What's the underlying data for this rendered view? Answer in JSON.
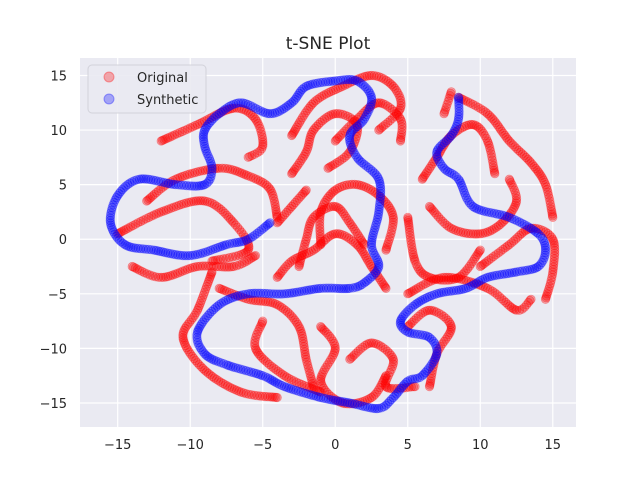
{
  "chart_data": {
    "type": "scatter",
    "title": "t-SNE Plot",
    "xlabel": "",
    "ylabel": "",
    "xlim": [
      -17.6,
      16.6
    ],
    "ylim": [
      -17.2,
      16.6
    ],
    "xticks": [
      -15,
      -10,
      -5,
      0,
      5,
      10,
      15
    ],
    "yticks": [
      -15,
      -10,
      -5,
      0,
      5,
      10,
      15
    ],
    "grid": true,
    "legend_position": "top-left",
    "background": "#eaeaf2",
    "grid_color": "#ffffff",
    "series": [
      {
        "name": "Original",
        "color": "#ff0000",
        "alpha": 0.3,
        "curves": [
          [
            [
              -12,
              9
            ],
            [
              -9.5,
              10.5
            ],
            [
              -7,
              12
            ],
            [
              -5.5,
              11
            ],
            [
              -5,
              8.5
            ],
            [
              -6,
              7.5
            ]
          ],
          [
            [
              -13,
              3.5
            ],
            [
              -11,
              5.5
            ],
            [
              -8,
              6.5
            ],
            [
              -6,
              5.8
            ],
            [
              -4.5,
              4.6
            ],
            [
              -4,
              2
            ]
          ],
          [
            [
              -15,
              0.5
            ],
            [
              -12,
              2.5
            ],
            [
              -9,
              3.5
            ],
            [
              -7,
              1.5
            ],
            [
              -6,
              -1
            ],
            [
              -8.5,
              -2
            ]
          ],
          [
            [
              -14,
              -2.5
            ],
            [
              -12,
              -3.5
            ],
            [
              -9.5,
              -2.5
            ],
            [
              -7,
              -2.5
            ],
            [
              -5.5,
              -1.5
            ]
          ],
          [
            [
              -8.5,
              -3
            ],
            [
              -9.5,
              -6.5
            ],
            [
              -10.5,
              -9
            ],
            [
              -9,
              -12
            ],
            [
              -6.5,
              -14
            ],
            [
              -4,
              -14.5
            ]
          ],
          [
            [
              -8,
              -4.5
            ],
            [
              -6,
              -5.5
            ],
            [
              -4,
              -6
            ],
            [
              -2.5,
              -8
            ],
            [
              -2,
              -11
            ],
            [
              -1.5,
              -13.5
            ]
          ],
          [
            [
              -5,
              -7.5
            ],
            [
              -5.5,
              -10
            ],
            [
              -3.5,
              -12.5
            ],
            [
              -1,
              -14
            ]
          ],
          [
            [
              -1,
              -8
            ],
            [
              0,
              -10
            ],
            [
              -1,
              -13
            ],
            [
              0.5,
              -15
            ],
            [
              2.5,
              -14.5
            ],
            [
              3.5,
              -12.5
            ]
          ],
          [
            [
              1,
              -11
            ],
            [
              2.5,
              -9.5
            ],
            [
              4,
              -11
            ],
            [
              3.5,
              -13.5
            ],
            [
              5.5,
              -13.5
            ]
          ],
          [
            [
              5,
              -8
            ],
            [
              6.5,
              -6.5
            ],
            [
              8,
              -8
            ],
            [
              7,
              -10.5
            ],
            [
              6.5,
              -13.5
            ]
          ],
          [
            [
              5,
              -5
            ],
            [
              7.5,
              -3.5
            ],
            [
              10.5,
              -4.5
            ],
            [
              12.5,
              -6.5
            ],
            [
              13.5,
              -5.5
            ]
          ],
          [
            [
              -4,
              -3.5
            ],
            [
              -3,
              -2
            ],
            [
              -1.5,
              -1
            ],
            [
              0,
              0.5
            ],
            [
              1.5,
              -0.5
            ],
            [
              2.5,
              -2.5
            ],
            [
              3.5,
              -4.5
            ]
          ],
          [
            [
              -2.5,
              -2.5
            ],
            [
              -2,
              0
            ],
            [
              -1.5,
              2
            ],
            [
              0,
              3
            ],
            [
              1,
              1.5
            ],
            [
              2,
              -0.5
            ]
          ],
          [
            [
              -1,
              -0.5
            ],
            [
              -1,
              2.5
            ],
            [
              0,
              4.5
            ],
            [
              1.5,
              5
            ],
            [
              3,
              4
            ],
            [
              4,
              2
            ],
            [
              3.5,
              -1
            ]
          ],
          [
            [
              -3,
              6
            ],
            [
              -2,
              8
            ],
            [
              -1.5,
              10
            ],
            [
              0,
              11.5
            ],
            [
              1.5,
              10.5
            ],
            [
              1,
              8
            ],
            [
              -0.5,
              6.5
            ]
          ],
          [
            [
              -3,
              9.5
            ],
            [
              -1.5,
              12.5
            ],
            [
              0.5,
              14
            ],
            [
              2.5,
              15
            ],
            [
              4,
              14
            ],
            [
              4.5,
              12
            ],
            [
              3,
              10
            ]
          ],
          [
            [
              0,
              9
            ],
            [
              1.5,
              11
            ],
            [
              3,
              12.5
            ],
            [
              4.5,
              11
            ],
            [
              4.5,
              9
            ]
          ],
          [
            [
              -2,
              4.5
            ],
            [
              -3,
              3
            ],
            [
              -4,
              1.5
            ]
          ],
          [
            [
              5,
              2
            ],
            [
              5.5,
              -2
            ],
            [
              6.5,
              -3.5
            ],
            [
              8.5,
              -3.5
            ],
            [
              10,
              -1
            ]
          ],
          [
            [
              6,
              5.5
            ],
            [
              7,
              7.5
            ],
            [
              8,
              9.5
            ],
            [
              9.5,
              10.5
            ],
            [
              10.5,
              9
            ],
            [
              11,
              6
            ]
          ],
          [
            [
              6.5,
              3
            ],
            [
              8,
              1
            ],
            [
              10,
              0.5
            ],
            [
              11.5,
              1.5
            ],
            [
              12.5,
              3.5
            ],
            [
              12,
              5.5
            ]
          ],
          [
            [
              8.5,
              13
            ],
            [
              10.5,
              11.5
            ],
            [
              12,
              9
            ],
            [
              13.5,
              7
            ],
            [
              14.5,
              5
            ],
            [
              15,
              2
            ]
          ],
          [
            [
              8,
              13.5
            ],
            [
              7.5,
              11.5
            ]
          ],
          [
            [
              10,
              -2.5
            ],
            [
              12,
              -0.5
            ],
            [
              13.5,
              1
            ],
            [
              15,
              0
            ],
            [
              15,
              -3
            ],
            [
              14.5,
              -5.5
            ]
          ]
        ]
      },
      {
        "name": "Synthetic",
        "color": "#0000ff",
        "alpha": 0.3,
        "curves": [
          [
            [
              -4.5,
              1.5
            ],
            [
              -6,
              0
            ],
            [
              -7.5,
              -0.5
            ],
            [
              -10,
              -1.5
            ],
            [
              -12.5,
              -1
            ],
            [
              -14.5,
              -0.5
            ],
            [
              -15.5,
              1.5
            ],
            [
              -15,
              4
            ],
            [
              -13.5,
              5.5
            ],
            [
              -11,
              5
            ],
            [
              -9,
              5
            ],
            [
              -8.5,
              6.5
            ],
            [
              -9,
              8.5
            ],
            [
              -9,
              10
            ],
            [
              -8,
              11.5
            ],
            [
              -6.5,
              12.5
            ],
            [
              -4.5,
              11.5
            ],
            [
              -3,
              12.5
            ],
            [
              -2,
              14
            ],
            [
              0,
              14.5
            ],
            [
              1.5,
              14.5
            ],
            [
              2.5,
              13
            ],
            [
              2,
              11
            ],
            [
              1,
              9.5
            ],
            [
              1.5,
              7.5
            ],
            [
              3,
              5.5
            ],
            [
              3,
              2.5
            ],
            [
              2.5,
              -0.5
            ],
            [
              3,
              -2.5
            ],
            [
              2,
              -4
            ],
            [
              1,
              -4.5
            ],
            [
              -1,
              -4.5
            ],
            [
              -3.5,
              -5
            ],
            [
              -6,
              -5
            ],
            [
              -8,
              -6
            ],
            [
              -9.5,
              -8.5
            ],
            [
              -9,
              -10.5
            ],
            [
              -7.5,
              -11.5
            ],
            [
              -5,
              -12.5
            ],
            [
              -3.5,
              -13.5
            ],
            [
              -1,
              -14.5
            ],
            [
              1,
              -15
            ],
            [
              3,
              -15.5
            ],
            [
              4,
              -14.5
            ],
            [
              5,
              -13
            ],
            [
              6,
              -12.5
            ],
            [
              7,
              -10.5
            ],
            [
              6.5,
              -9
            ],
            [
              5,
              -8.5
            ],
            [
              4.5,
              -7.5
            ],
            [
              5.5,
              -6
            ],
            [
              7,
              -5
            ],
            [
              9,
              -4.5
            ],
            [
              10.5,
              -3.5
            ],
            [
              12.5,
              -3
            ],
            [
              14,
              -2.5
            ],
            [
              14.5,
              -1
            ],
            [
              14,
              0.5
            ],
            [
              12,
              2
            ],
            [
              9.5,
              3
            ],
            [
              8.5,
              5.5
            ],
            [
              7.5,
              6.5
            ],
            [
              7,
              8
            ],
            [
              8,
              9.5
            ],
            [
              8.5,
              11
            ],
            [
              8.5,
              13
            ]
          ]
        ]
      }
    ]
  }
}
